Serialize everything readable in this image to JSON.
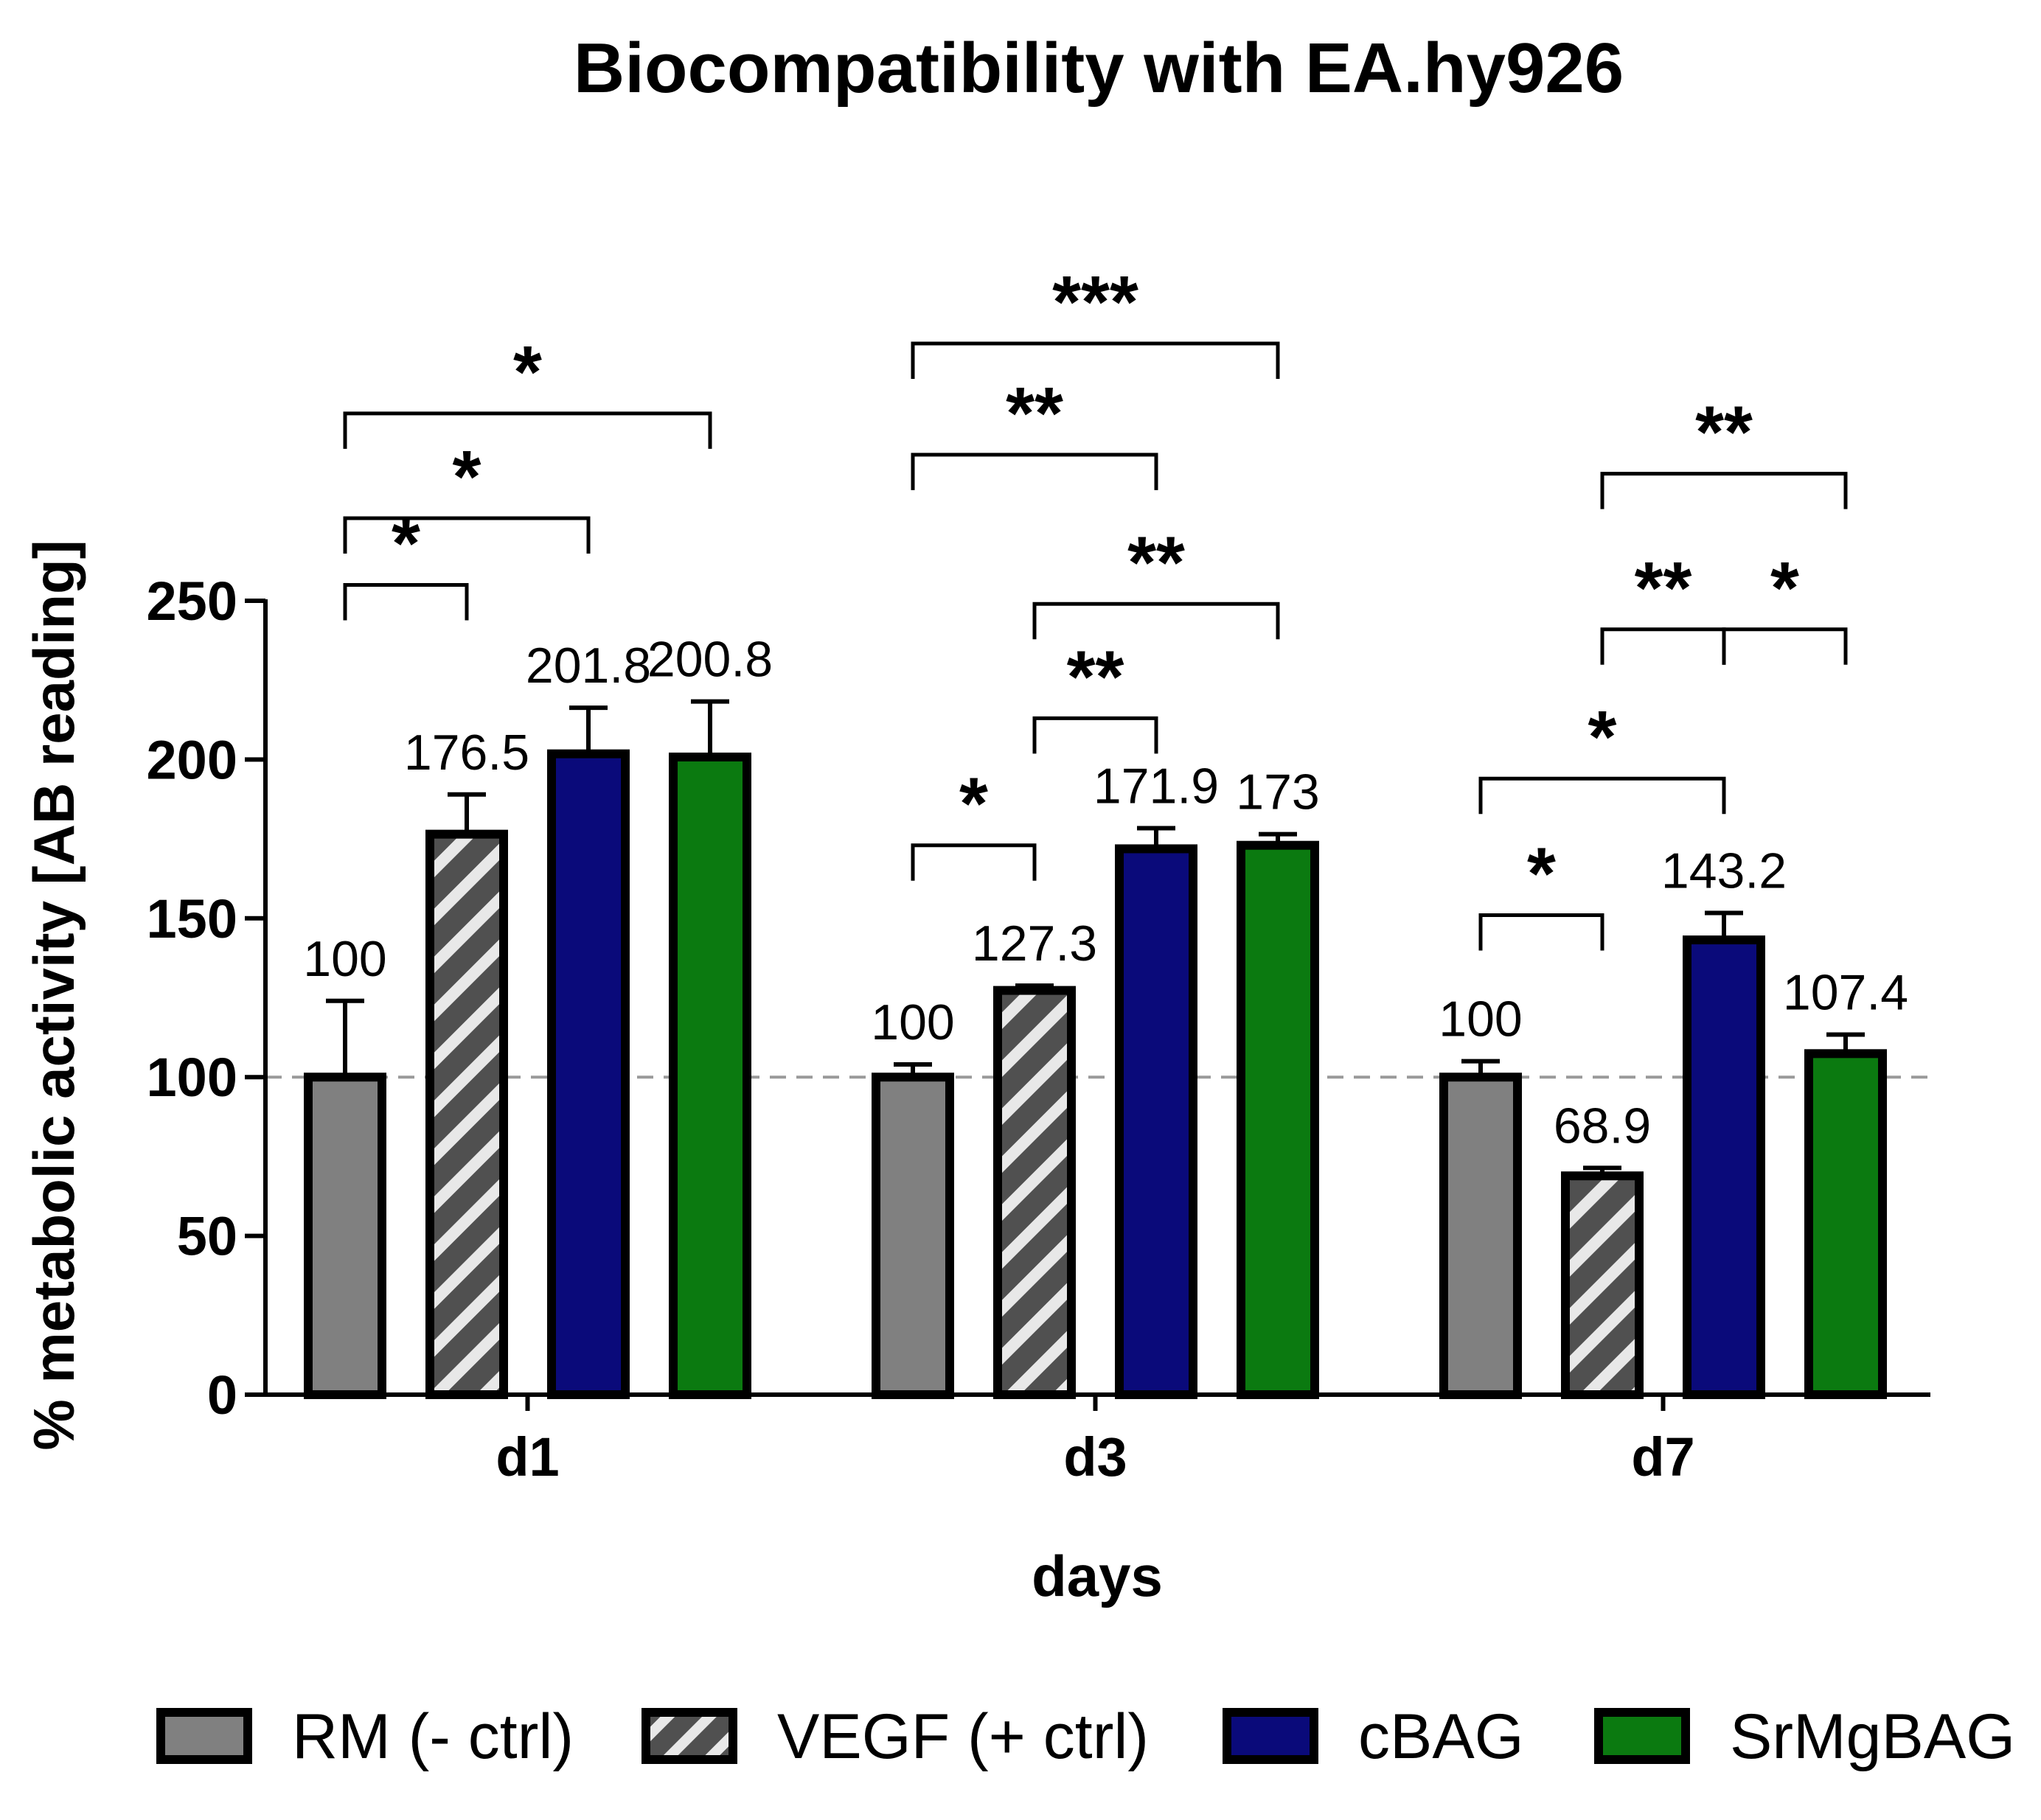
{
  "chart_data": {
    "type": "bar",
    "title": "Biocompatibility with EA.hy926",
    "xlabel": "days",
    "ylabel": "% metabolic activity [AB reading]",
    "ylim": [
      0,
      250
    ],
    "yticks": [
      0,
      50,
      100,
      150,
      200,
      250
    ],
    "reference_line": 100,
    "categories": [
      "d1",
      "d3",
      "d7"
    ],
    "series": [
      {
        "name": "RM (- ctrl)",
        "color": "#808080",
        "pattern": "solid",
        "values": [
          100,
          100,
          100
        ],
        "errors": [
          24,
          4,
          5
        ],
        "labels": [
          "100",
          "100",
          "100"
        ]
      },
      {
        "name": "VEGF (+ ctrl)",
        "color": "#505050",
        "pattern": "hatched",
        "values": [
          176.5,
          127.3,
          68.9
        ],
        "errors": [
          12.5,
          1.5,
          2.5
        ],
        "labels": [
          "176.5",
          "127.3",
          "68.9"
        ]
      },
      {
        "name": "cBAG",
        "color": "#0a0a7a",
        "pattern": "solid",
        "values": [
          201.8,
          171.9,
          143.2
        ],
        "errors": [
          14.5,
          6.5,
          8.5
        ],
        "labels": [
          "201.8",
          "171.9",
          "143.2"
        ]
      },
      {
        "name": "SrMgBAG",
        "color": "#0b7a10",
        "pattern": "solid",
        "values": [
          200.8,
          173,
          107.4
        ],
        "errors": [
          17.5,
          3.5,
          6
        ],
        "labels": [
          "200.8",
          "173",
          "107.4"
        ]
      }
    ],
    "significance": [
      {
        "category": "d1",
        "from": 0,
        "to": 1,
        "level": 255,
        "stars": "*"
      },
      {
        "category": "d1",
        "from": 0,
        "to": 2,
        "level": 276,
        "stars": "*"
      },
      {
        "category": "d1",
        "from": 0,
        "to": 3,
        "level": 309,
        "stars": "*"
      },
      {
        "category": "d3",
        "from": 0,
        "to": 1,
        "level": 173,
        "stars": "*"
      },
      {
        "category": "d3",
        "from": 1,
        "to": 2,
        "level": 213,
        "stars": "**"
      },
      {
        "category": "d3",
        "from": 1,
        "to": 3,
        "level": 249,
        "stars": "**"
      },
      {
        "category": "d3",
        "from": 0,
        "to": 2,
        "level": 296,
        "stars": "**"
      },
      {
        "category": "d3",
        "from": 0,
        "to": 3,
        "level": 331,
        "stars": "***"
      },
      {
        "category": "d7",
        "from": 0,
        "to": 1,
        "level": 151,
        "stars": "*"
      },
      {
        "category": "d7",
        "from": 0,
        "to": 2,
        "level": 194,
        "stars": "*"
      },
      {
        "category": "d7",
        "from": 1,
        "to": 2,
        "level": 241,
        "stars": "**"
      },
      {
        "category": "d7",
        "from": 2,
        "to": 3,
        "level": 241,
        "stars": "*"
      },
      {
        "category": "d7",
        "from": 1,
        "to": 3,
        "level": 290,
        "stars": "**"
      }
    ]
  }
}
